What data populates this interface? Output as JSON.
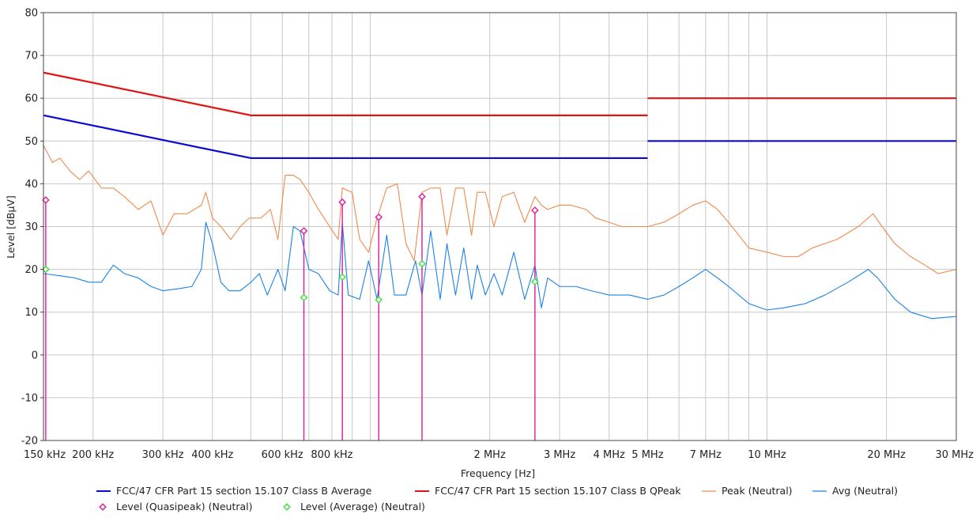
{
  "chart_data": {
    "type": "line",
    "title": "",
    "xlabel": "Frequency [Hz]",
    "ylabel": "Level [dBµV]",
    "x_scale": "log",
    "xlim_hz": [
      150000,
      30000000
    ],
    "ylim": [
      -20,
      80
    ],
    "grid": true,
    "legend_position": "bottom",
    "y_ticks": [
      80,
      70,
      60,
      50,
      40,
      30,
      20,
      10,
      0,
      -10,
      -20
    ],
    "x_ticks": [
      {
        "hz": 150000,
        "label": "150 kHz"
      },
      {
        "hz": 200000,
        "label": "200 kHz"
      },
      {
        "hz": 300000,
        "label": "300 kHz"
      },
      {
        "hz": 400000,
        "label": "400 kHz"
      },
      {
        "hz": 600000,
        "label": "600 kHz"
      },
      {
        "hz": 800000,
        "label": "800 kHz"
      },
      {
        "hz": 2000000,
        "label": "2 MHz"
      },
      {
        "hz": 3000000,
        "label": "3 MHz"
      },
      {
        "hz": 4000000,
        "label": "4 MHz"
      },
      {
        "hz": 5000000,
        "label": "5 MHz"
      },
      {
        "hz": 7000000,
        "label": "7 MHz"
      },
      {
        "hz": 10000000,
        "label": "10 MHz"
      },
      {
        "hz": 20000000,
        "label": "20 MHz"
      },
      {
        "hz": 30000000,
        "label": "30 MHz"
      }
    ],
    "grid_hz": [
      150000,
      200000,
      300000,
      400000,
      500000,
      600000,
      700000,
      800000,
      900000,
      1000000,
      2000000,
      3000000,
      4000000,
      5000000,
      6000000,
      7000000,
      8000000,
      9000000,
      10000000,
      20000000,
      30000000
    ],
    "series": [
      {
        "name": "FCC/47 CFR Part 15 section 15.107 Class B Average",
        "style": "limit",
        "color": "#0a0ad2",
        "segments": [
          [
            [
              150000,
              56
            ],
            [
              500000,
              46
            ],
            [
              5000000,
              46
            ]
          ],
          [
            [
              5000000,
              50
            ],
            [
              30000000,
              50
            ]
          ]
        ]
      },
      {
        "name": "FCC/47 CFR Part 15 section 15.107 Class B QPeak",
        "style": "limit",
        "color": "#e11414",
        "segments": [
          [
            [
              150000,
              66
            ],
            [
              500000,
              56
            ],
            [
              5000000,
              56
            ]
          ],
          [
            [
              5000000,
              60
            ],
            [
              30000000,
              60
            ]
          ]
        ]
      },
      {
        "name": "Peak (Neutral)",
        "style": "trace",
        "color": "#f08a4b",
        "points": [
          [
            150000,
            49
          ],
          [
            158000,
            45
          ],
          [
            165000,
            46
          ],
          [
            175000,
            43
          ],
          [
            185000,
            41
          ],
          [
            195000,
            43
          ],
          [
            210000,
            39
          ],
          [
            225000,
            39
          ],
          [
            240000,
            37
          ],
          [
            260000,
            34
          ],
          [
            280000,
            36
          ],
          [
            300000,
            28
          ],
          [
            320000,
            33
          ],
          [
            345000,
            33
          ],
          [
            375000,
            35
          ],
          [
            385000,
            38
          ],
          [
            400000,
            32
          ],
          [
            420000,
            30
          ],
          [
            445000,
            27
          ],
          [
            470000,
            30
          ],
          [
            495000,
            32
          ],
          [
            530000,
            32
          ],
          [
            560000,
            34
          ],
          [
            585000,
            27
          ],
          [
            610000,
            42
          ],
          [
            640000,
            42
          ],
          [
            665000,
            41
          ],
          [
            700000,
            38
          ],
          [
            740000,
            34
          ],
          [
            790000,
            30
          ],
          [
            830000,
            27
          ],
          [
            850000,
            39
          ],
          [
            900000,
            38
          ],
          [
            940000,
            27
          ],
          [
            990000,
            24
          ],
          [
            1040000,
            32
          ],
          [
            1100000,
            39
          ],
          [
            1170000,
            40
          ],
          [
            1230000,
            26
          ],
          [
            1290000,
            22
          ],
          [
            1350000,
            38
          ],
          [
            1420000,
            39
          ],
          [
            1500000,
            39
          ],
          [
            1560000,
            28
          ],
          [
            1640000,
            39
          ],
          [
            1720000,
            39
          ],
          [
            1800000,
            28
          ],
          [
            1860000,
            38
          ],
          [
            1950000,
            38
          ],
          [
            2050000,
            30
          ],
          [
            2150000,
            37
          ],
          [
            2300000,
            38
          ],
          [
            2450000,
            31
          ],
          [
            2600000,
            37
          ],
          [
            2700000,
            35
          ],
          [
            2800000,
            34
          ],
          [
            3000000,
            35
          ],
          [
            3200000,
            35
          ],
          [
            3500000,
            34
          ],
          [
            3700000,
            32
          ],
          [
            4000000,
            31
          ],
          [
            4300000,
            30
          ],
          [
            4700000,
            30
          ],
          [
            5000000,
            30
          ],
          [
            5500000,
            31
          ],
          [
            6000000,
            33
          ],
          [
            6500000,
            35
          ],
          [
            7000000,
            36
          ],
          [
            7500000,
            34
          ],
          [
            8000000,
            31
          ],
          [
            9000000,
            25
          ],
          [
            10000000,
            24
          ],
          [
            11000000,
            23
          ],
          [
            12000000,
            23
          ],
          [
            13000000,
            25
          ],
          [
            15000000,
            27
          ],
          [
            17000000,
            30
          ],
          [
            18500000,
            33
          ],
          [
            19500000,
            30
          ],
          [
            21000000,
            26
          ],
          [
            23000000,
            23
          ],
          [
            25000000,
            21
          ],
          [
            27000000,
            19
          ],
          [
            30000000,
            20
          ]
        ]
      },
      {
        "name": "Avg (Neutral)",
        "style": "trace",
        "color": "#1a82e6",
        "points": [
          [
            150000,
            19
          ],
          [
            165000,
            18.5
          ],
          [
            180000,
            18
          ],
          [
            195000,
            17
          ],
          [
            210000,
            17
          ],
          [
            225000,
            21
          ],
          [
            240000,
            19
          ],
          [
            260000,
            18
          ],
          [
            280000,
            16
          ],
          [
            300000,
            15
          ],
          [
            330000,
            15.5
          ],
          [
            355000,
            16
          ],
          [
            375000,
            20
          ],
          [
            385000,
            31
          ],
          [
            400000,
            26
          ],
          [
            420000,
            17
          ],
          [
            440000,
            15
          ],
          [
            470000,
            15
          ],
          [
            500000,
            17
          ],
          [
            525000,
            19
          ],
          [
            550000,
            14
          ],
          [
            585000,
            20
          ],
          [
            610000,
            15
          ],
          [
            640000,
            30
          ],
          [
            665000,
            29
          ],
          [
            700000,
            20
          ],
          [
            740000,
            19
          ],
          [
            790000,
            15
          ],
          [
            830000,
            14
          ],
          [
            850000,
            31
          ],
          [
            880000,
            14
          ],
          [
            940000,
            13
          ],
          [
            990000,
            22
          ],
          [
            1040000,
            13
          ],
          [
            1100000,
            28
          ],
          [
            1150000,
            14
          ],
          [
            1230000,
            14
          ],
          [
            1300000,
            22
          ],
          [
            1350000,
            14
          ],
          [
            1420000,
            29
          ],
          [
            1500000,
            13
          ],
          [
            1560000,
            26
          ],
          [
            1640000,
            14
          ],
          [
            1720000,
            25
          ],
          [
            1800000,
            13
          ],
          [
            1860000,
            21
          ],
          [
            1950000,
            14
          ],
          [
            2050000,
            19
          ],
          [
            2150000,
            14
          ],
          [
            2300000,
            24
          ],
          [
            2450000,
            13
          ],
          [
            2600000,
            21
          ],
          [
            2700000,
            11
          ],
          [
            2800000,
            18
          ],
          [
            3000000,
            16
          ],
          [
            3300000,
            16
          ],
          [
            3600000,
            15
          ],
          [
            4000000,
            14
          ],
          [
            4500000,
            14
          ],
          [
            5000000,
            13
          ],
          [
            5500000,
            14
          ],
          [
            6000000,
            16
          ],
          [
            6500000,
            18
          ],
          [
            7000000,
            20
          ],
          [
            7500000,
            18
          ],
          [
            8000000,
            16
          ],
          [
            9000000,
            12
          ],
          [
            10000000,
            10.5
          ],
          [
            11000000,
            11
          ],
          [
            12500000,
            12
          ],
          [
            14000000,
            14
          ],
          [
            16000000,
            17
          ],
          [
            18000000,
            20
          ],
          [
            19000000,
            18
          ],
          [
            21000000,
            13
          ],
          [
            23000000,
            10
          ],
          [
            26000000,
            8.5
          ],
          [
            30000000,
            9
          ]
        ]
      },
      {
        "name": "Level (Quasipeak) (Neutral)",
        "style": "marker",
        "marker": "diamond",
        "color": "#e0189c",
        "points": [
          [
            152000,
            36.2
          ],
          [
            680000,
            29
          ],
          [
            850000,
            35.7
          ],
          [
            1050000,
            32.2
          ],
          [
            1350000,
            37
          ],
          [
            2600000,
            33.8
          ]
        ]
      },
      {
        "name": "Level (Average) (Neutral)",
        "style": "marker",
        "marker": "diamond",
        "color": "#3be03b",
        "points": [
          [
            152000,
            20
          ],
          [
            680000,
            13.4
          ],
          [
            850000,
            18.2
          ],
          [
            1050000,
            12.9
          ],
          [
            1350000,
            21.3
          ],
          [
            2600000,
            17.1
          ]
        ]
      }
    ],
    "stems": {
      "color": "#e0189c",
      "x_hz": [
        152000,
        680000,
        850000,
        1050000,
        1350000,
        2600000
      ],
      "y_top": [
        36.2,
        29,
        35.7,
        32.2,
        37,
        33.8
      ]
    }
  }
}
